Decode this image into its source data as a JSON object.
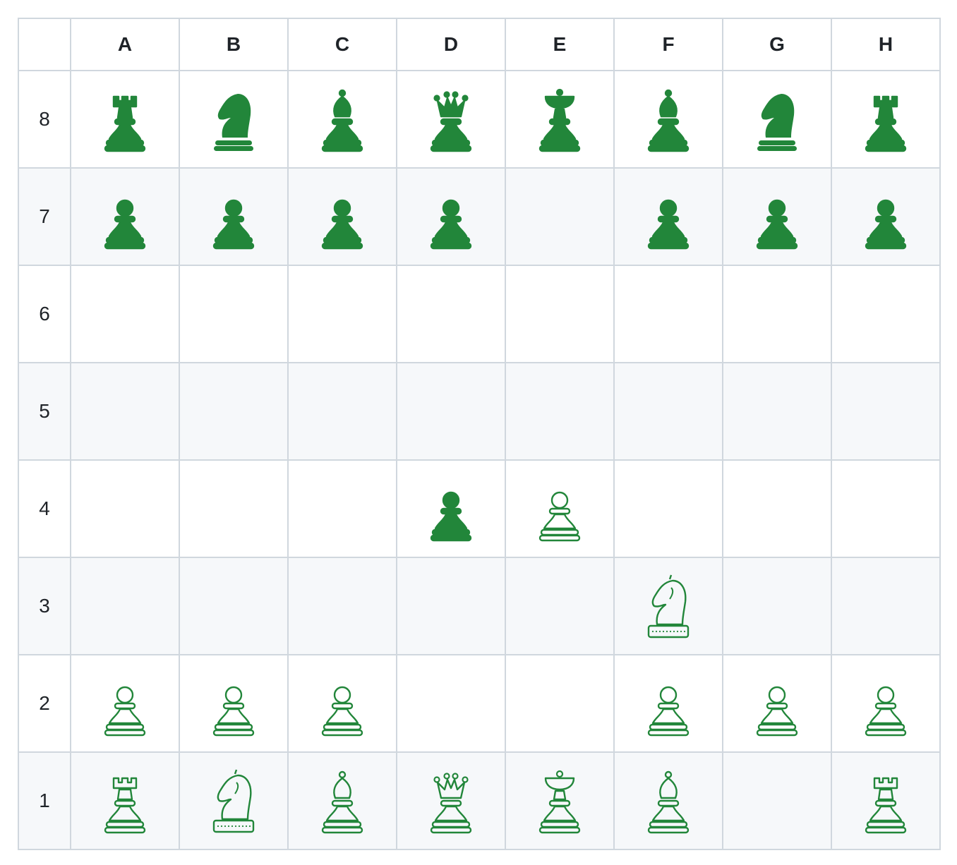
{
  "board": {
    "files": [
      "A",
      "B",
      "C",
      "D",
      "E",
      "F",
      "G",
      "H"
    ],
    "ranks": [
      {
        "label": "8",
        "shaded": false,
        "squares": [
          "black-rook",
          "black-knight",
          "black-bishop",
          "black-queen",
          "black-king",
          "black-bishop",
          "black-knight",
          "black-rook"
        ]
      },
      {
        "label": "7",
        "shaded": true,
        "squares": [
          "black-pawn",
          "black-pawn",
          "black-pawn",
          "black-pawn",
          "",
          "black-pawn",
          "black-pawn",
          "black-pawn"
        ]
      },
      {
        "label": "6",
        "shaded": false,
        "squares": [
          "",
          "",
          "",
          "",
          "",
          "",
          "",
          ""
        ]
      },
      {
        "label": "5",
        "shaded": true,
        "squares": [
          "",
          "",
          "",
          "",
          "",
          "",
          "",
          ""
        ]
      },
      {
        "label": "4",
        "shaded": false,
        "squares": [
          "",
          "",
          "",
          "black-pawn",
          "white-pawn",
          "",
          "",
          ""
        ]
      },
      {
        "label": "3",
        "shaded": true,
        "squares": [
          "",
          "",
          "",
          "",
          "",
          "white-knight",
          "",
          ""
        ]
      },
      {
        "label": "2",
        "shaded": false,
        "squares": [
          "white-pawn",
          "white-pawn",
          "white-pawn",
          "",
          "",
          "white-pawn",
          "white-pawn",
          "white-pawn"
        ]
      },
      {
        "label": "1",
        "shaded": true,
        "squares": [
          "white-rook",
          "white-knight",
          "white-bishop",
          "white-queen",
          "white-king",
          "white-bishop",
          "",
          "white-rook"
        ]
      }
    ]
  },
  "colors": {
    "piece_green": "#22863a",
    "border": "#d0d7de",
    "shaded_row": "#f6f8fa",
    "text": "#1f2328"
  }
}
